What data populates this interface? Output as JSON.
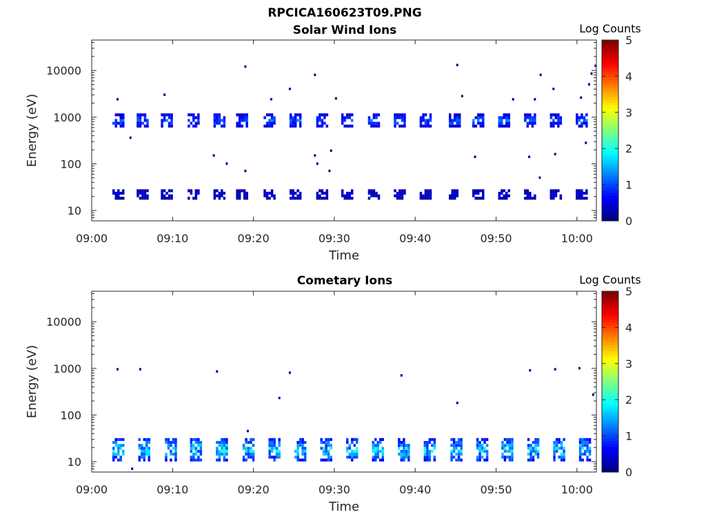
{
  "figure": {
    "filename_title": "RPCICA160623T09.PNG"
  },
  "colors": {
    "axis": "#262626",
    "background": "#ffffff",
    "colormap": "jet"
  },
  "chart_data": [
    {
      "type": "heatmap",
      "title": "Solar Wind Ions",
      "xlabel": "Time",
      "ylabel": "Energy (eV)",
      "x_ticks": [
        "09:00",
        "09:10",
        "09:20",
        "09:30",
        "09:40",
        "09:50",
        "10:00"
      ],
      "x_range_minutes": [
        0,
        62.4
      ],
      "y_scale": "log",
      "y_range": [
        6,
        45000
      ],
      "y_ticks": [
        "10",
        "100",
        "1000",
        "10000"
      ],
      "colorbar": {
        "label": "Log Counts",
        "ticks": [
          "0",
          "1",
          "2",
          "3",
          "4",
          "5"
        ],
        "range": [
          0,
          5
        ]
      },
      "cycles_minutes": [
        3.3,
        6.3,
        9.3,
        12.6,
        15.8,
        18.6,
        22.0,
        25.2,
        28.5,
        31.6,
        34.9,
        38.1,
        41.3,
        44.9,
        47.8,
        51.0,
        54.2,
        57.4,
        60.6
      ],
      "bands": [
        {
          "name": "solar wind peak",
          "center_eV": 850,
          "spread_decades": 0.12,
          "log_counts": 1.1
        },
        {
          "name": "low energy",
          "center_eV": 22,
          "spread_decades": 0.08,
          "log_counts": 0.5
        }
      ],
      "scattered_points": [
        {
          "t": 19.0,
          "e": 12000
        },
        {
          "t": 27.6,
          "e": 8000
        },
        {
          "t": 45.2,
          "e": 13000
        },
        {
          "t": 55.5,
          "e": 8000
        },
        {
          "t": 57.1,
          "e": 4000
        },
        {
          "t": 61.8,
          "e": 8500
        },
        {
          "t": 61.5,
          "e": 5000
        },
        {
          "t": 62.3,
          "e": 12500
        },
        {
          "t": 3.2,
          "e": 2400
        },
        {
          "t": 9.0,
          "e": 3000
        },
        {
          "t": 24.5,
          "e": 4000
        },
        {
          "t": 30.2,
          "e": 2500
        },
        {
          "t": 22.2,
          "e": 2400
        },
        {
          "t": 45.8,
          "e": 2800
        },
        {
          "t": 52.1,
          "e": 2400
        },
        {
          "t": 54.8,
          "e": 2400
        },
        {
          "t": 60.5,
          "e": 2600
        },
        {
          "t": 15.1,
          "e": 150
        },
        {
          "t": 16.7,
          "e": 100
        },
        {
          "t": 19.0,
          "e": 70
        },
        {
          "t": 27.6,
          "e": 150
        },
        {
          "t": 27.9,
          "e": 100
        },
        {
          "t": 29.6,
          "e": 190
        },
        {
          "t": 29.4,
          "e": 70
        },
        {
          "t": 47.4,
          "e": 140
        },
        {
          "t": 54.1,
          "e": 140
        },
        {
          "t": 57.3,
          "e": 160
        },
        {
          "t": 55.4,
          "e": 50
        },
        {
          "t": 61.1,
          "e": 280
        },
        {
          "t": 4.8,
          "e": 360
        }
      ]
    },
    {
      "type": "heatmap",
      "title": "Cometary Ions",
      "xlabel": "Time",
      "ylabel": "Energy (eV)",
      "x_ticks": [
        "09:00",
        "09:10",
        "09:20",
        "09:30",
        "09:40",
        "09:50",
        "10:00"
      ],
      "x_range_minutes": [
        0,
        62.4
      ],
      "y_scale": "log",
      "y_range": [
        6,
        45000
      ],
      "y_ticks": [
        "10",
        "100",
        "1000",
        "10000"
      ],
      "colorbar": {
        "label": "Log Counts",
        "ticks": [
          "0",
          "1",
          "2",
          "3",
          "4",
          "5"
        ],
        "range": [
          0,
          5
        ]
      },
      "cycles_minutes": [
        3.3,
        6.5,
        9.8,
        12.9,
        16.1,
        19.4,
        22.6,
        25.8,
        29.0,
        32.2,
        35.4,
        38.6,
        41.8,
        45.1,
        48.3,
        51.4,
        54.6,
        57.8,
        61.0
      ],
      "bands": [
        {
          "name": "cometary ions",
          "center_eV": 18,
          "spread_decades": 0.22,
          "log_counts": 1.8
        }
      ],
      "scattered_points": [
        {
          "t": 3.2,
          "e": 950
        },
        {
          "t": 6.0,
          "e": 950
        },
        {
          "t": 15.5,
          "e": 850
        },
        {
          "t": 19.3,
          "e": 45
        },
        {
          "t": 23.2,
          "e": 230
        },
        {
          "t": 24.5,
          "e": 800
        },
        {
          "t": 38.3,
          "e": 700
        },
        {
          "t": 45.2,
          "e": 180
        },
        {
          "t": 54.2,
          "e": 900
        },
        {
          "t": 57.3,
          "e": 950
        },
        {
          "t": 60.3,
          "e": 1000
        },
        {
          "t": 62.0,
          "e": 270
        },
        {
          "t": 5.0,
          "e": 7
        }
      ]
    }
  ]
}
